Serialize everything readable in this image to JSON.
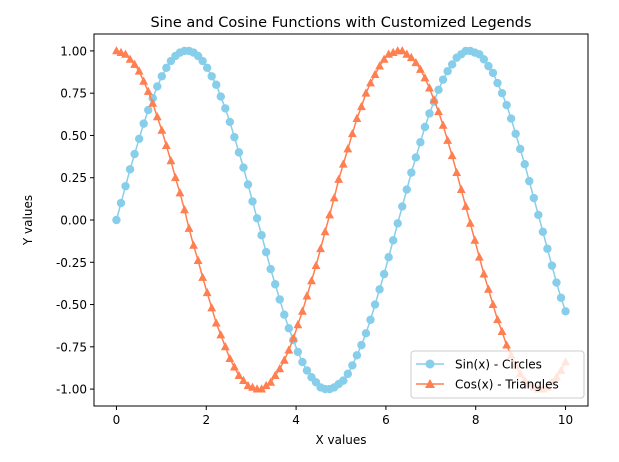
{
  "chart_data": {
    "type": "line",
    "title": "Sine and Cosine Functions with Customized Legends",
    "xlabel": "X values",
    "ylabel": "Y values",
    "xlim": [
      -0.5,
      10.5
    ],
    "ylim": [
      -1.1,
      1.1
    ],
    "xticks": [
      "0",
      "2",
      "4",
      "6",
      "8",
      "10"
    ],
    "yticks": [
      "-1.00",
      "-0.75",
      "-0.50",
      "-0.25",
      "0.00",
      "0.25",
      "0.50",
      "0.75",
      "1.00"
    ],
    "grid": false,
    "legend_position": "lower-right",
    "x": [
      0,
      0.101,
      0.202,
      0.303,
      0.404,
      0.505,
      0.606,
      0.707,
      0.808,
      0.909,
      1.01,
      1.111,
      1.212,
      1.313,
      1.414,
      1.515,
      1.616,
      1.717,
      1.818,
      1.919,
      2.02,
      2.121,
      2.222,
      2.323,
      2.424,
      2.525,
      2.626,
      2.727,
      2.828,
      2.929,
      3.03,
      3.131,
      3.232,
      3.333,
      3.434,
      3.535,
      3.636,
      3.737,
      3.838,
      3.939,
      4.04,
      4.141,
      4.242,
      4.343,
      4.444,
      4.545,
      4.646,
      4.747,
      4.848,
      4.949,
      5.051,
      5.152,
      5.253,
      5.354,
      5.455,
      5.556,
      5.657,
      5.758,
      5.859,
      5.96,
      6.061,
      6.162,
      6.263,
      6.364,
      6.465,
      6.566,
      6.667,
      6.768,
      6.869,
      6.97,
      7.071,
      7.172,
      7.273,
      7.374,
      7.475,
      7.576,
      7.677,
      7.778,
      7.879,
      7.98,
      8.081,
      8.182,
      8.283,
      8.384,
      8.485,
      8.586,
      8.687,
      8.788,
      8.889,
      8.99,
      9.091,
      9.192,
      9.293,
      9.394,
      9.495,
      9.596,
      9.697,
      9.798,
      9.899,
      10
    ],
    "series": [
      {
        "name": "Sin(x) - Circles",
        "color": "#87CEEB",
        "marker": "circle",
        "values": [
          0,
          0.1,
          0.2,
          0.3,
          0.39,
          0.48,
          0.57,
          0.65,
          0.72,
          0.79,
          0.85,
          0.9,
          0.94,
          0.97,
          0.99,
          1.0,
          1.0,
          0.99,
          0.97,
          0.94,
          0.9,
          0.85,
          0.8,
          0.73,
          0.66,
          0.58,
          0.49,
          0.4,
          0.31,
          0.21,
          0.11,
          0.01,
          -0.09,
          -0.19,
          -0.29,
          -0.38,
          -0.47,
          -0.56,
          -0.64,
          -0.71,
          -0.78,
          -0.84,
          -0.89,
          -0.93,
          -0.96,
          -0.99,
          -1.0,
          -1.0,
          -0.99,
          -0.97,
          -0.95,
          -0.91,
          -0.86,
          -0.8,
          -0.74,
          -0.67,
          -0.59,
          -0.5,
          -0.41,
          -0.32,
          -0.22,
          -0.12,
          -0.02,
          0.08,
          0.18,
          0.28,
          0.37,
          0.46,
          0.55,
          0.63,
          0.7,
          0.77,
          0.83,
          0.88,
          0.92,
          0.96,
          0.98,
          1.0,
          1.0,
          0.99,
          0.98,
          0.95,
          0.91,
          0.87,
          0.81,
          0.75,
          0.68,
          0.6,
          0.51,
          0.42,
          0.33,
          0.23,
          0.13,
          0.03,
          -0.07,
          -0.17,
          -0.27,
          -0.37,
          -0.46,
          -0.54
        ]
      },
      {
        "name": "Cos(x) - Triangles",
        "color": "#FF7F50",
        "marker": "triangle",
        "values": [
          1,
          0.99,
          0.98,
          0.95,
          0.92,
          0.88,
          0.82,
          0.76,
          0.69,
          0.61,
          0.53,
          0.44,
          0.35,
          0.25,
          0.16,
          0.06,
          -0.05,
          -0.15,
          -0.24,
          -0.34,
          -0.43,
          -0.52,
          -0.61,
          -0.68,
          -0.75,
          -0.82,
          -0.87,
          -0.92,
          -0.95,
          -0.98,
          -0.99,
          -1.0,
          -1.0,
          -0.98,
          -0.96,
          -0.92,
          -0.88,
          -0.83,
          -0.77,
          -0.7,
          -0.62,
          -0.54,
          -0.45,
          -0.36,
          -0.27,
          -0.17,
          -0.07,
          0.03,
          0.13,
          0.24,
          0.33,
          0.42,
          0.51,
          0.6,
          0.67,
          0.75,
          0.81,
          0.86,
          0.91,
          0.95,
          0.98,
          0.99,
          1.0,
          1.0,
          0.98,
          0.96,
          0.93,
          0.89,
          0.84,
          0.78,
          0.71,
          0.64,
          0.56,
          0.47,
          0.38,
          0.28,
          0.18,
          0.08,
          -0.02,
          -0.12,
          -0.22,
          -0.32,
          -0.41,
          -0.5,
          -0.59,
          -0.66,
          -0.74,
          -0.8,
          -0.86,
          -0.91,
          -0.95,
          -0.97,
          -0.99,
          -1.0,
          -1.0,
          -0.99,
          -0.96,
          -0.93,
          -0.89,
          -0.84
        ]
      }
    ]
  }
}
